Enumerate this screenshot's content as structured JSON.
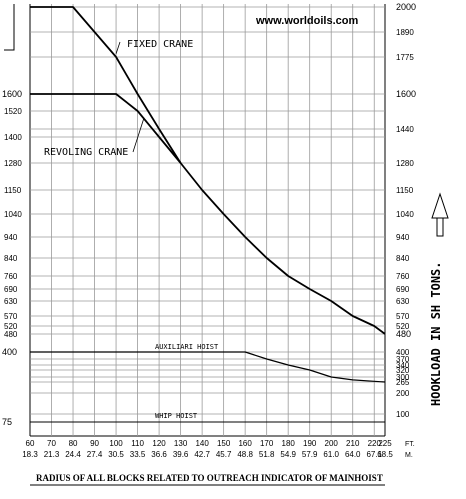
{
  "chart_data": {
    "type": "line",
    "watermark": "www.worldoils.com",
    "ylabel": "HOOKLOAD IN SH TONS.",
    "xlabel": "RADIUS OF ALL BLOCKS RELATED TO OUTREACH INDICATOR OF MAINHOIST",
    "x_unit_ft": "FT.",
    "x_unit_m": "M.",
    "xlim": [
      60,
      225
    ],
    "x_ticks_ft": [
      "60",
      "70",
      "80",
      "90",
      "100",
      "110",
      "120",
      "130",
      "140",
      "150",
      "160",
      "170",
      "180",
      "190",
      "200",
      "210",
      "220",
      "225"
    ],
    "x_ticks_m": [
      "18.3",
      "21.3",
      "24.4",
      "27.4",
      "30.5",
      "33.5",
      "36.6",
      "39.6",
      "42.7",
      "45.7",
      "48.8",
      "51.8",
      "54.9",
      "57.9",
      "61.0",
      "64.0",
      "67.1",
      "68.5"
    ],
    "y_ticks_left": [
      "1600",
      "1520",
      "1400",
      "1280",
      "1150",
      "1040",
      "940",
      "840",
      "760",
      "690",
      "630",
      "570",
      "520",
      "480",
      "400",
      "75"
    ],
    "y_ticks_right": [
      "2000",
      "1890",
      "1775",
      "1600",
      "1440",
      "1280",
      "1150",
      "1040",
      "940",
      "840",
      "760",
      "690",
      "630",
      "570",
      "520",
      "480",
      "400",
      "370",
      "340",
      "320",
      "300",
      "265",
      "200",
      "100"
    ],
    "series": [
      {
        "name": "FIXED CRANE",
        "x": [
          60,
          80,
          100,
          110,
          120,
          130,
          140,
          150,
          160,
          170,
          180,
          190,
          200,
          210,
          220,
          225
        ],
        "y": [
          2000,
          2000,
          1775,
          1600,
          1440,
          1280,
          1150,
          1040,
          940,
          840,
          760,
          690,
          630,
          570,
          520,
          480
        ]
      },
      {
        "name": "REVOLING CRANE",
        "x": [
          60,
          100,
          110,
          120,
          130
        ],
        "y": [
          1600,
          1600,
          1520,
          1400,
          1280
        ]
      },
      {
        "name": "AUXILIARI HOIST",
        "x": [
          60,
          160,
          170,
          180,
          190,
          200,
          210,
          220,
          225
        ],
        "y": [
          400,
          400,
          370,
          340,
          320,
          300,
          280,
          270,
          265
        ]
      },
      {
        "name": "WHIP HOIST",
        "x": [
          60,
          225
        ],
        "y": [
          75,
          75
        ]
      }
    ]
  }
}
